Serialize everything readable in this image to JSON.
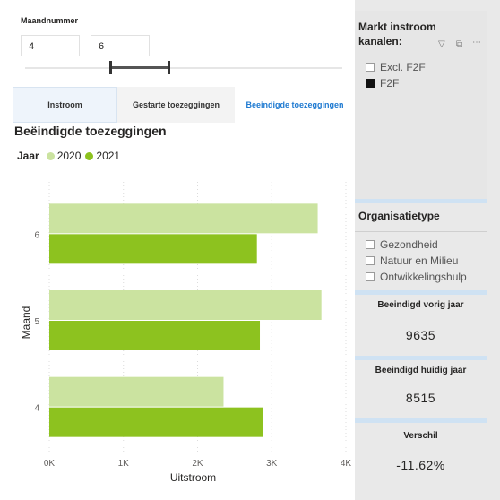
{
  "slicer": {
    "title": "Maandnummer",
    "from": "4",
    "to": "6"
  },
  "tabs": [
    {
      "label": "Instroom"
    },
    {
      "label": "Gestarte toezeggingen"
    },
    {
      "label": "Beeindigde toezeggingen"
    }
  ],
  "chart_title": "Beëindigde toezeggingen",
  "legend_label": "Jaar",
  "colors": {
    "y2020": "#cbe3a0",
    "y2021": "#8dc21f",
    "accent": "#1f7ad1"
  },
  "chart_data": {
    "type": "bar",
    "orientation": "horizontal",
    "categories": [
      "6",
      "5",
      "4"
    ],
    "series": [
      {
        "name": "2020",
        "values": [
          3620,
          3670,
          2350
        ]
      },
      {
        "name": "2021",
        "values": [
          2800,
          2840,
          2880
        ]
      }
    ],
    "xlabel": "Uitstroom",
    "ylabel": "Maand",
    "xlim": [
      0,
      4000
    ],
    "xticks": [
      "0K",
      "1K",
      "2K",
      "3K",
      "4K"
    ]
  },
  "markt": {
    "title": "Markt instroom kanalen:",
    "options": [
      {
        "label": "Excl. F2F",
        "checked": false
      },
      {
        "label": "F2F",
        "checked": true
      }
    ]
  },
  "organisatie": {
    "title": "Organisatietype",
    "options": [
      {
        "label": "Gezondheid"
      },
      {
        "label": "Natuur en Milieu"
      },
      {
        "label": "Ontwikkelingshulp"
      }
    ]
  },
  "cards": [
    {
      "title": "Beeindigd vorig jaar",
      "value": "9635"
    },
    {
      "title": "Beeindigd huidig jaar",
      "value": "8515"
    },
    {
      "title": "Verschil",
      "value": "-11.62%"
    }
  ]
}
